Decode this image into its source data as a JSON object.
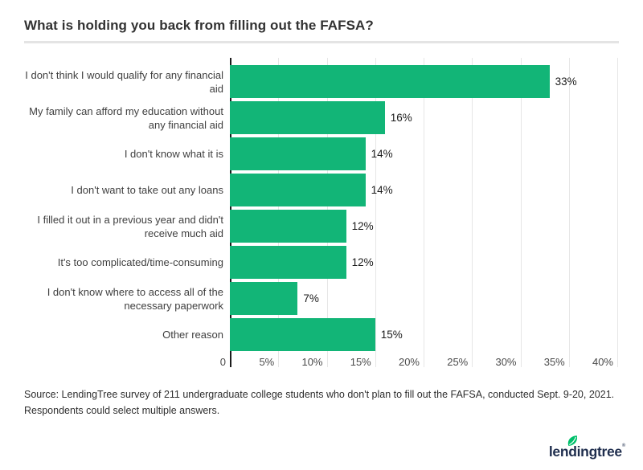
{
  "title": "What is holding you back from filling out the FAFSA?",
  "chart_data": {
    "type": "bar",
    "orientation": "horizontal",
    "title": "What is holding you back from filling out the FAFSA?",
    "categories": [
      "I don't think I would qualify for any financial\naid",
      "My family can afford my education without\nany financial aid",
      "I don't know what it is",
      "I don't want to take out any loans",
      "I filled it out in a previous year and didn't\nreceive much aid",
      "It's too complicated/time-consuming",
      "I don't know where to access all of the\nnecessary paperwork",
      "Other reason"
    ],
    "values": [
      33,
      16,
      14,
      14,
      12,
      12,
      7,
      15
    ],
    "value_labels": [
      "33%",
      "16%",
      "14%",
      "14%",
      "12%",
      "12%",
      "7%",
      "15%"
    ],
    "x_ticks": [
      {
        "value": 0,
        "label": "0"
      },
      {
        "value": 5,
        "label": "5%"
      },
      {
        "value": 10,
        "label": "10%"
      },
      {
        "value": 15,
        "label": "15%"
      },
      {
        "value": 20,
        "label": "20%"
      },
      {
        "value": 25,
        "label": "25%"
      },
      {
        "value": 30,
        "label": "30%"
      },
      {
        "value": 35,
        "label": "35%"
      },
      {
        "value": 40,
        "label": "40%"
      }
    ],
    "xlim": [
      0,
      40
    ],
    "grid": true,
    "legend": "none",
    "colors": {
      "bar": "#12b577",
      "axis": "#1c1c1c",
      "gridline": "#e6e6e6"
    }
  },
  "source": "Source: LendingTree survey of 211 undergraduate college students who don't plan to fill out the FAFSA, conducted Sept. 9-20, 2021. Respondents could select multiple answers.",
  "logo": {
    "text": "lendingtree",
    "trademark": "®",
    "text_color": "#1e2d4d",
    "leaf_color": "#00c06b"
  }
}
